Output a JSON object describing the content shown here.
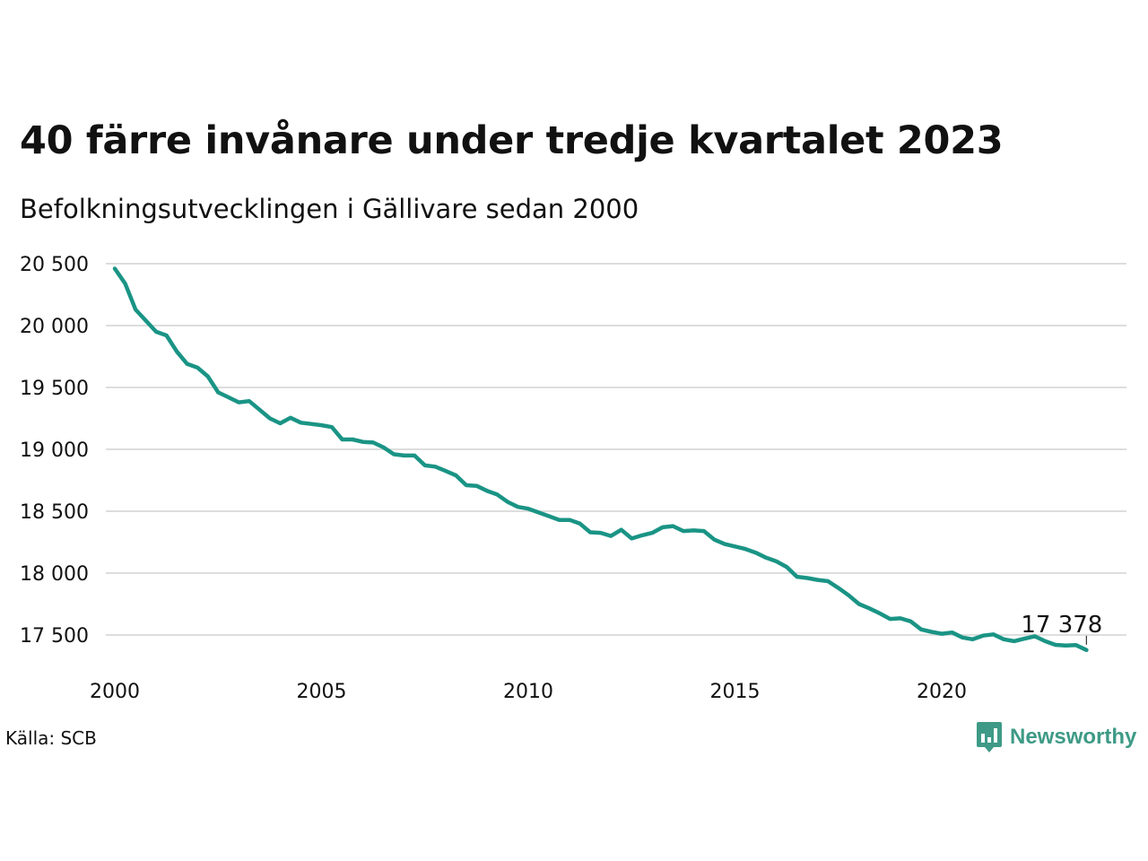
{
  "title": "40 färre invånare under tredje kvartalet 2023",
  "subtitle": "Befolkningsutvecklingen i Gällivare sedan 2000",
  "source": "Källa: SCB",
  "brand": {
    "name": "Newsworthy",
    "icon": "newsworthy-logo-icon",
    "color": "#3e9a86"
  },
  "chart_data": {
    "type": "line",
    "line_color": "#1a9485",
    "grid": true,
    "x_ticks": [
      "2000",
      "2005",
      "2010",
      "2015",
      "2020"
    ],
    "y_ticks": [
      "17 500",
      "18 000",
      "18 500",
      "19 000",
      "19 500",
      "20 000",
      "20 500"
    ],
    "xlim": [
      2000,
      2023.75
    ],
    "ylim": [
      17250,
      20550
    ],
    "last_label": "17 378",
    "series": [
      {
        "x_start": 2000.0,
        "x_step": 0.25,
        "values": [
          20460,
          20340,
          20130,
          20040,
          19950,
          19920,
          19790,
          19690,
          19660,
          19590,
          19460,
          19420,
          19380,
          19390,
          19320,
          19250,
          19210,
          19255,
          19215,
          19205,
          19195,
          19180,
          19080,
          19080,
          19060,
          19055,
          19015,
          18960,
          18950,
          18950,
          18870,
          18860,
          18825,
          18790,
          18710,
          18705,
          18665,
          18635,
          18575,
          18535,
          18520,
          18490,
          18460,
          18430,
          18430,
          18400,
          18330,
          18325,
          18300,
          18350,
          18280,
          18305,
          18325,
          18370,
          18380,
          18340,
          18345,
          18340,
          18270,
          18235,
          18215,
          18195,
          18165,
          18125,
          18095,
          18050,
          17970,
          17960,
          17945,
          17935,
          17880,
          17820,
          17750,
          17715,
          17675,
          17630,
          17635,
          17610,
          17545,
          17525,
          17510,
          17520,
          17480,
          17465,
          17495,
          17505,
          17465,
          17450,
          17470,
          17490,
          17450,
          17420,
          17415,
          17418,
          17378
        ]
      }
    ]
  }
}
